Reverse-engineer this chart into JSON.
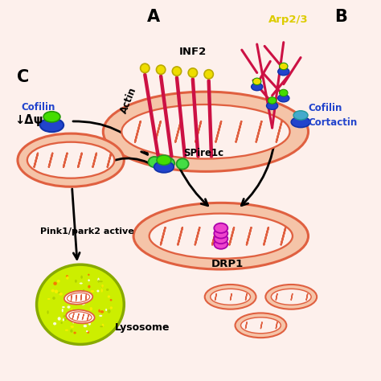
{
  "bg_color": "#fdf0ec",
  "cell_bg": "#fdf0ec",
  "cell_edge": "#e8b0a0",
  "mito_face": "#f5c4a8",
  "mito_edge": "#e06040",
  "mito_inner": "#fdf0ec",
  "label_A": "A",
  "label_B": "B",
  "label_C": "C",
  "label_INF2": "INF2",
  "label_SPire1c": "SPire1c",
  "label_Arp23": "Arp2/3",
  "label_Cofilin": "Cofilin",
  "label_Cortactin": "Cortactin",
  "label_DRP1": "DRP1",
  "label_Cofilin_C": "Cofilin",
  "label_delta_psi": "↓Δψ",
  "label_pink1": "Pink1/park2 active",
  "label_lysosome": "Lysosome",
  "actin_color": "#cc1144",
  "inf2_ball_color": "#eedd00",
  "spire_ball_color": "#44dd44",
  "cofilin_blue": "#2244cc",
  "cofilin_green": "#44dd00",
  "arp23_label_color": "#ddcc00",
  "cortactin_cyan": "#44aacc",
  "drp1_color": "#ee44cc",
  "drp1_edge": "#aa00aa",
  "lysosome_color": "#ccee00",
  "lysosome_edge": "#88aa00",
  "arrow_color": "#111111",
  "figsize": [
    4.74,
    4.74
  ],
  "dpi": 100
}
